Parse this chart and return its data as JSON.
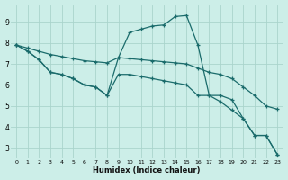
{
  "xlabel": "Humidex (Indice chaleur)",
  "bg_color": "#cceee8",
  "grid_color": "#aad4cc",
  "line_color": "#1a6b6b",
  "xlim": [
    -0.5,
    23.5
  ],
  "ylim": [
    2.5,
    9.8
  ],
  "yticks": [
    3,
    4,
    5,
    6,
    7,
    8,
    9
  ],
  "xticks": [
    0,
    1,
    2,
    3,
    4,
    5,
    6,
    7,
    8,
    9,
    10,
    11,
    12,
    13,
    14,
    15,
    16,
    17,
    18,
    19,
    20,
    21,
    22,
    23
  ],
  "line1_x": [
    0,
    1,
    2,
    3,
    4,
    5,
    6,
    7,
    8,
    9,
    10,
    11,
    12,
    13,
    14,
    15,
    16,
    17,
    18,
    19,
    20,
    21,
    22,
    23
  ],
  "line1_y": [
    7.9,
    7.6,
    7.2,
    6.6,
    6.5,
    6.3,
    6.0,
    5.9,
    5.5,
    7.3,
    8.5,
    8.65,
    8.8,
    8.85,
    9.25,
    9.3,
    7.9,
    5.5,
    5.5,
    5.3,
    4.4,
    3.6,
    3.6,
    2.7
  ],
  "line2_x": [
    0,
    1,
    2,
    3,
    4,
    5,
    6,
    7,
    8,
    9,
    10,
    11,
    12,
    13,
    14,
    15,
    16,
    17,
    18,
    19,
    20,
    21,
    22,
    23
  ],
  "line2_y": [
    7.9,
    7.75,
    7.6,
    7.45,
    7.35,
    7.25,
    7.15,
    7.1,
    7.05,
    7.3,
    7.25,
    7.2,
    7.15,
    7.1,
    7.05,
    7.0,
    6.8,
    6.6,
    6.5,
    6.3,
    5.9,
    5.5,
    5.0,
    4.85
  ],
  "line3_x": [
    0,
    1,
    2,
    3,
    4,
    5,
    6,
    7,
    8,
    9,
    10,
    11,
    12,
    13,
    14,
    15,
    16,
    17,
    18,
    19,
    20,
    21,
    22,
    23
  ],
  "line3_y": [
    7.9,
    7.6,
    7.2,
    6.6,
    6.5,
    6.3,
    6.0,
    5.9,
    5.5,
    6.5,
    6.5,
    6.4,
    6.3,
    6.2,
    6.1,
    6.0,
    5.5,
    5.5,
    5.2,
    4.8,
    4.4,
    3.6,
    3.6,
    2.7
  ]
}
